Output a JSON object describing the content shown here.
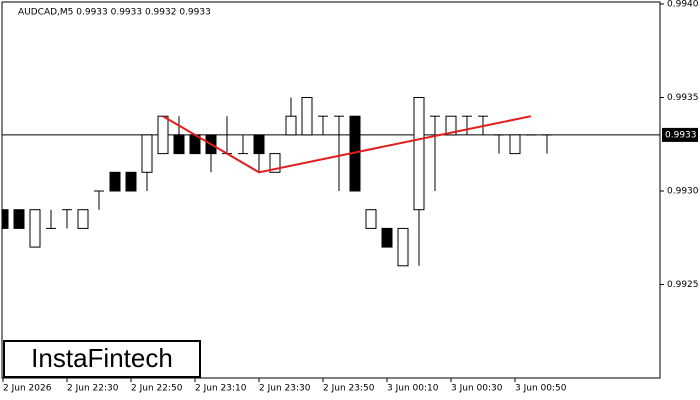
{
  "chart_data": {
    "type": "candlestick",
    "title": "AUDCAD,M5  0.9933 0.9933 0.9932 0.9933",
    "watermark": "InstaFintech",
    "categories": [
      "2 Jun 2026",
      null,
      null,
      null,
      "2 Jun 22:30",
      null,
      null,
      null,
      "2 Jun 22:50",
      null,
      null,
      null,
      "2 Jun 23:10",
      null,
      null,
      null,
      "2 Jun 23:30",
      null,
      null,
      null,
      "2 Jun 23:50",
      null,
      null,
      null,
      "3 Jun 00:10",
      null,
      null,
      null,
      "3 Jun 00:30",
      null,
      null,
      null,
      "3 Jun 00:50",
      null,
      null
    ],
    "open": [
      0.9929,
      0.9929,
      0.9927,
      0.9928,
      0.9929,
      0.9928,
      0.993,
      0.9931,
      0.9931,
      0.9931,
      0.9932,
      0.9933,
      0.9933,
      0.9933,
      0.9932,
      0.9932,
      0.9933,
      0.9931,
      0.9933,
      0.9933,
      0.9934,
      0.9934,
      0.9934,
      0.9928,
      0.9928,
      0.9926,
      0.9929,
      0.9934,
      0.9933,
      0.9934,
      0.9934,
      0.9933,
      0.9932,
      0.9933,
      0.9933
    ],
    "high": [
      0.9929,
      0.9929,
      0.9929,
      0.9929,
      0.9929,
      0.9929,
      0.993,
      0.9931,
      0.9931,
      0.9933,
      0.9934,
      0.9934,
      0.9933,
      0.9933,
      0.9934,
      0.9933,
      0.9933,
      0.9932,
      0.9935,
      0.9935,
      0.9934,
      0.9934,
      0.9934,
      0.9929,
      0.9928,
      0.9928,
      0.9935,
      0.9934,
      0.9934,
      0.9934,
      0.9934,
      0.9933,
      0.9933,
      0.9933,
      0.9933
    ],
    "low": [
      0.9928,
      0.9928,
      0.9927,
      0.9928,
      0.9928,
      0.9928,
      0.9929,
      0.993,
      0.993,
      0.993,
      0.9932,
      0.9932,
      0.9932,
      0.9931,
      0.9932,
      0.9932,
      0.9931,
      0.9931,
      0.9933,
      0.9933,
      0.9933,
      0.993,
      0.993,
      0.9928,
      0.9927,
      0.9926,
      0.9926,
      0.993,
      0.9933,
      0.9933,
      0.9933,
      0.9932,
      0.9932,
      0.9933,
      0.9932
    ],
    "close": [
      0.9928,
      0.9928,
      0.9929,
      0.9928,
      0.9929,
      0.9929,
      0.993,
      0.993,
      0.993,
      0.9933,
      0.9934,
      0.9932,
      0.9932,
      0.9932,
      0.9932,
      0.9932,
      0.9932,
      0.9932,
      0.9934,
      0.9935,
      0.9934,
      0.9934,
      0.993,
      0.9929,
      0.9927,
      0.9928,
      0.9935,
      0.9934,
      0.9934,
      0.9934,
      0.9934,
      0.9933,
      0.9933,
      0.9933,
      0.9933
    ],
    "up_color": "#ffffff",
    "down_color": "#000000",
    "ylim": [
      0.992,
      0.994
    ],
    "yticks": [
      {
        "value": 0.994,
        "label": "0.9940"
      },
      0.9935,
      {
        "value": 0.993,
        "label": "0.9930"
      },
      0.9925
    ],
    "last_price": 0.9933,
    "pattern_line": {
      "color": "#e01e1e",
      "x": [
        10,
        16,
        33
      ],
      "y": [
        0.9934,
        0.9931,
        0.9934
      ]
    }
  }
}
